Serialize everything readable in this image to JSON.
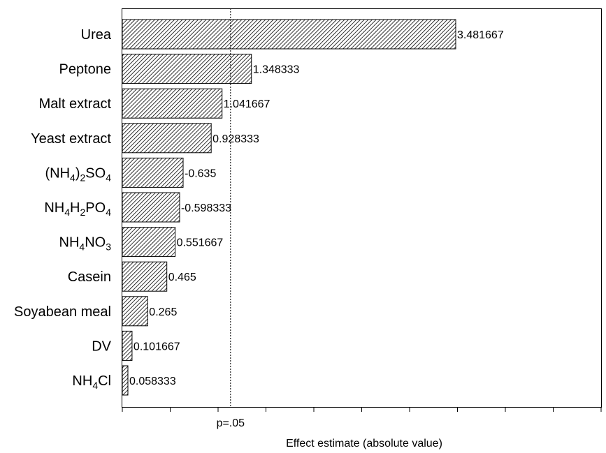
{
  "chart_data": {
    "type": "bar",
    "orientation": "horizontal",
    "xlabel": "Effect estimate (absolute value)",
    "ylabel": "",
    "title": "",
    "grid": false,
    "xlim": [
      0,
      5
    ],
    "threshold": {
      "label": "p=.05",
      "value": 1.13
    },
    "categories": [
      {
        "parts": [
          [
            "Urea",
            ""
          ]
        ]
      },
      {
        "parts": [
          [
            "Peptone",
            ""
          ]
        ]
      },
      {
        "parts": [
          [
            "Malt extract",
            ""
          ]
        ]
      },
      {
        "parts": [
          [
            "Yeast extract",
            ""
          ]
        ]
      },
      {
        "parts": [
          [
            "(NH",
            ""
          ],
          [
            "4",
            "sub"
          ],
          [
            ")",
            ""
          ],
          [
            "2",
            "sub"
          ],
          [
            "SO",
            ""
          ],
          [
            "4",
            "sub"
          ]
        ]
      },
      {
        "parts": [
          [
            "NH",
            ""
          ],
          [
            "4",
            "sub"
          ],
          [
            "H",
            ""
          ],
          [
            "2",
            "sub"
          ],
          [
            "PO",
            ""
          ],
          [
            "4",
            "sub"
          ]
        ]
      },
      {
        "parts": [
          [
            "NH",
            ""
          ],
          [
            "4",
            "sub"
          ],
          [
            "NO",
            ""
          ],
          [
            "3",
            "sub"
          ]
        ]
      },
      {
        "parts": [
          [
            "Casein",
            ""
          ]
        ]
      },
      {
        "parts": [
          [
            "Soyabean meal",
            ""
          ]
        ]
      },
      {
        "parts": [
          [
            "DV",
            ""
          ]
        ]
      },
      {
        "parts": [
          [
            "NH",
            ""
          ],
          [
            "4",
            "sub"
          ],
          [
            "Cl",
            ""
          ]
        ]
      }
    ],
    "values": [
      3.481667,
      1.348333,
      1.041667,
      0.928333,
      -0.635,
      -0.598333,
      0.551667,
      0.465,
      0.265,
      0.101667,
      0.058333
    ],
    "value_labels": [
      "3.481667",
      "1.348333",
      "1.041667",
      "0.928333",
      "-0.635",
      "-0.598333",
      "0.551667",
      "0.465",
      "0.265",
      "0.101667",
      "0.058333"
    ],
    "bar_pattern": "diagonal-hatch",
    "bar_color": "#000000"
  }
}
